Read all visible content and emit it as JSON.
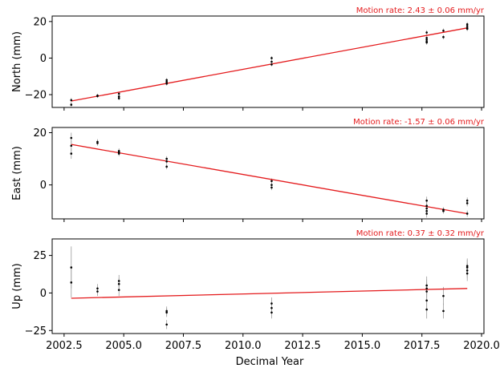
{
  "chart_data": {
    "type": "scatter",
    "xlabel": "Decimal Year",
    "xlim": [
      2002.0,
      2020.1
    ],
    "xticks": [
      2002.5,
      2005.0,
      2007.5,
      2010.0,
      2012.5,
      2015.0,
      2017.5,
      2020.0
    ],
    "xtick_labels": [
      "2002.5",
      "2005.0",
      "2007.5",
      "2010.0",
      "2012.5",
      "2015.0",
      "2017.5",
      "2020.0"
    ],
    "colors": {
      "points": "#000000",
      "trend": "#e41a1c",
      "errorbar": "#9a9a9a",
      "frame": "#000000"
    },
    "panels": [
      {
        "id": "north",
        "ylabel": "North (mm)",
        "rate_text": "Motion rate: 2.43 ± 0.06 mm/yr",
        "ylim": [
          -27,
          23
        ],
        "yticks": [
          -20,
          0,
          20
        ],
        "ytick_labels": [
          "−20",
          "0",
          "20"
        ],
        "trend": {
          "x": [
            2002.8,
            2019.4
          ],
          "y": [
            -23.5,
            16.5
          ]
        },
        "points": [
          {
            "x": 2002.8,
            "y": -23,
            "err": 1.2
          },
          {
            "x": 2002.8,
            "y": -25.5,
            "err": 1.2
          },
          {
            "x": 2003.9,
            "y": -20.5,
            "err": 1.0
          },
          {
            "x": 2003.9,
            "y": -20.8,
            "err": 1.0
          },
          {
            "x": 2004.8,
            "y": -19.5,
            "err": 1.0
          },
          {
            "x": 2004.8,
            "y": -21,
            "err": 1.0
          },
          {
            "x": 2004.8,
            "y": -22,
            "err": 1.0
          },
          {
            "x": 2006.8,
            "y": -12,
            "err": 1.0
          },
          {
            "x": 2006.8,
            "y": -13,
            "err": 1.0
          },
          {
            "x": 2006.8,
            "y": -14,
            "err": 1.0
          },
          {
            "x": 2011.2,
            "y": 0,
            "err": 1.0
          },
          {
            "x": 2011.2,
            "y": -2,
            "err": 1.0
          },
          {
            "x": 2011.2,
            "y": -3.5,
            "err": 1.0
          },
          {
            "x": 2017.7,
            "y": 14,
            "err": 1.2
          },
          {
            "x": 2017.7,
            "y": 11,
            "err": 1.2
          },
          {
            "x": 2017.7,
            "y": 10,
            "err": 1.2
          },
          {
            "x": 2017.7,
            "y": 9,
            "err": 1.2
          },
          {
            "x": 2017.7,
            "y": 8.5,
            "err": 1.2
          },
          {
            "x": 2018.4,
            "y": 15,
            "err": 1.2
          },
          {
            "x": 2018.4,
            "y": 11.5,
            "err": 1.2
          },
          {
            "x": 2019.4,
            "y": 18.5,
            "err": 1.2
          },
          {
            "x": 2019.4,
            "y": 17.5,
            "err": 1.2
          },
          {
            "x": 2019.4,
            "y": 16.5,
            "err": 1.2
          },
          {
            "x": 2019.4,
            "y": 16,
            "err": 1.2
          }
        ]
      },
      {
        "id": "east",
        "ylabel": "East (mm)",
        "rate_text": "Motion rate: -1.57 ± 0.06 mm/yr",
        "ylim": [
          -13,
          22
        ],
        "yticks": [
          0,
          20
        ],
        "ytick_labels": [
          "0",
          "20"
        ],
        "trend": {
          "x": [
            2002.8,
            2019.4
          ],
          "y": [
            15.5,
            -11
          ]
        },
        "points": [
          {
            "x": 2002.8,
            "y": 18,
            "err": 2.0
          },
          {
            "x": 2002.8,
            "y": 15,
            "err": 2.0
          },
          {
            "x": 2002.8,
            "y": 12,
            "err": 2.0
          },
          {
            "x": 2003.9,
            "y": 16.5,
            "err": 1.0
          },
          {
            "x": 2003.9,
            "y": 16,
            "err": 1.0
          },
          {
            "x": 2004.8,
            "y": 13,
            "err": 1.0
          },
          {
            "x": 2004.8,
            "y": 12.5,
            "err": 1.0
          },
          {
            "x": 2004.8,
            "y": 12,
            "err": 1.0
          },
          {
            "x": 2006.8,
            "y": 10,
            "err": 1.0
          },
          {
            "x": 2006.8,
            "y": 9,
            "err": 1.0
          },
          {
            "x": 2006.8,
            "y": 7,
            "err": 1.0
          },
          {
            "x": 2011.2,
            "y": 1.5,
            "err": 1.0
          },
          {
            "x": 2011.2,
            "y": 0,
            "err": 1.0
          },
          {
            "x": 2011.2,
            "y": -1,
            "err": 1.0
          },
          {
            "x": 2017.7,
            "y": -6,
            "err": 1.5
          },
          {
            "x": 2017.7,
            "y": -8,
            "err": 1.5
          },
          {
            "x": 2017.7,
            "y": -9,
            "err": 1.5
          },
          {
            "x": 2017.7,
            "y": -10,
            "err": 1.5
          },
          {
            "x": 2017.7,
            "y": -11,
            "err": 1.5
          },
          {
            "x": 2018.4,
            "y": -9.5,
            "err": 1.0
          },
          {
            "x": 2018.4,
            "y": -10,
            "err": 1.0
          },
          {
            "x": 2019.4,
            "y": -6,
            "err": 1.2
          },
          {
            "x": 2019.4,
            "y": -7,
            "err": 1.2
          },
          {
            "x": 2019.4,
            "y": -11,
            "err": 1.2
          }
        ]
      },
      {
        "id": "up",
        "ylabel": "Up (mm)",
        "rate_text": "Motion rate: 0.37 ± 0.32 mm/yr",
        "ylim": [
          -27,
          36
        ],
        "yticks": [
          -25,
          0,
          25
        ],
        "ytick_labels": [
          "−25",
          "0",
          "25"
        ],
        "trend": {
          "x": [
            2002.8,
            2019.4
          ],
          "y": [
            -3.5,
            3
          ]
        },
        "points": [
          {
            "x": 2002.8,
            "y": 17,
            "err": 14
          },
          {
            "x": 2002.8,
            "y": 7,
            "err": 10
          },
          {
            "x": 2003.9,
            "y": 3,
            "err": 3
          },
          {
            "x": 2003.9,
            "y": 1,
            "err": 3
          },
          {
            "x": 2004.8,
            "y": 8,
            "err": 4
          },
          {
            "x": 2004.8,
            "y": 6,
            "err": 4
          },
          {
            "x": 2004.8,
            "y": 2,
            "err": 4
          },
          {
            "x": 2006.8,
            "y": -12,
            "err": 3
          },
          {
            "x": 2006.8,
            "y": -13,
            "err": 3
          },
          {
            "x": 2006.8,
            "y": -21,
            "err": 3
          },
          {
            "x": 2011.2,
            "y": -7,
            "err": 4
          },
          {
            "x": 2011.2,
            "y": -10,
            "err": 4
          },
          {
            "x": 2011.2,
            "y": -13,
            "err": 4
          },
          {
            "x": 2017.7,
            "y": 5,
            "err": 6
          },
          {
            "x": 2017.7,
            "y": 3,
            "err": 6
          },
          {
            "x": 2017.7,
            "y": 1,
            "err": 6
          },
          {
            "x": 2017.7,
            "y": -5,
            "err": 6
          },
          {
            "x": 2017.7,
            "y": -11,
            "err": 6
          },
          {
            "x": 2018.4,
            "y": -2,
            "err": 6
          },
          {
            "x": 2018.4,
            "y": -12,
            "err": 5
          },
          {
            "x": 2019.4,
            "y": 18,
            "err": 5
          },
          {
            "x": 2019.4,
            "y": 17,
            "err": 5
          },
          {
            "x": 2019.4,
            "y": 15,
            "err": 5
          },
          {
            "x": 2019.4,
            "y": 13,
            "err": 5
          }
        ]
      }
    ]
  }
}
